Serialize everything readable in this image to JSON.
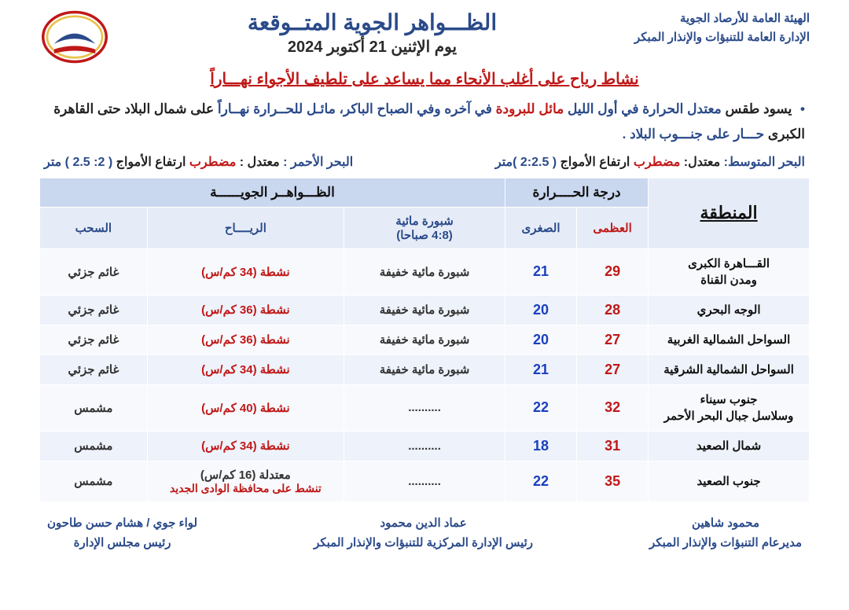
{
  "org": {
    "line1": "الهيئة العامة للأرصاد الجوية",
    "line2": "الإدارة العامة للتنبؤات والإنذار المبكر"
  },
  "title": {
    "main": "الظـــواهر الجوية المتــوقعة",
    "date": "يوم الإثنين 21 أكتوبر 2024"
  },
  "subtitle": "نشاط رياح على أغلب الأنحاء مما يساعد على تلطيف الأجواء نهـــاراً",
  "summary": {
    "prefix": "يسود طقس",
    "p1": " معتدل الحرارة في أول الليل",
    "p2": " مائل للبرودة",
    "p3": " في آخره وفي الصباح الباكر، مائـل للحــرارة نهــاراً",
    "p4": " على شمال البلاد حتى القاهرة الكبرى",
    "p5": " حـــار على جنـــوب البلاد ."
  },
  "seas": {
    "med": {
      "label": "البحر المتوسط:",
      "status_a": "معتدل:",
      "status_b": "مضطرب",
      "waves_label": "ارتفاع الأمواج",
      "waves_val": "( 2:2.5 )متر"
    },
    "red": {
      "label": "البحر الأحمر :",
      "status_a": "معتدل :",
      "status_b": "مضطرب",
      "waves_label": "ارتفاع الأمواج",
      "waves_val": "( 2: 2.5 ) متر"
    }
  },
  "table": {
    "headers": {
      "region": "المنطقة",
      "temp_group": "درجة الحــــرارة",
      "phen_group": "الظـــواهــر الجويــــــة",
      "max": "العظمى",
      "min": "الصغرى",
      "mist": "شبورة مائية\n(4:8 صباحا)",
      "wind": "الريــــاح",
      "cloud": "السحب"
    },
    "rows": [
      {
        "region": "القـــاهرة الكبرى\nومدن القناة",
        "max": "29",
        "min": "21",
        "mist": "شبورة مائية خفيفة",
        "wind": "نشطة (34 كم/س)",
        "wind_extra": "",
        "cloud": "غائم جزئي"
      },
      {
        "region": "الوجه البحري",
        "max": "28",
        "min": "20",
        "mist": "شبورة مائية خفيفة",
        "wind": "نشطة (36 كم/س)",
        "wind_extra": "",
        "cloud": "غائم جزئي"
      },
      {
        "region": "السواحل الشمالية الغربية",
        "max": "27",
        "min": "20",
        "mist": "شبورة مائية خفيفة",
        "wind": "نشطة (36 كم/س)",
        "wind_extra": "",
        "cloud": "غائم جزئي"
      },
      {
        "region": "السواحل الشمالية الشرقية",
        "max": "27",
        "min": "21",
        "mist": "شبورة مائية خفيفة",
        "wind": "نشطة (34 كم/س)",
        "wind_extra": "",
        "cloud": "غائم جزئي"
      },
      {
        "region": "جنوب سيناء\nوسلاسل جبال البحر الأحمر",
        "max": "32",
        "min": "22",
        "mist": "..........",
        "wind": "نشطة (40 كم/س)",
        "wind_extra": "",
        "cloud": "مشمس"
      },
      {
        "region": "شمال الصعيد",
        "max": "31",
        "min": "18",
        "mist": "..........",
        "wind": "نشطة (34 كم/س)",
        "wind_extra": "",
        "cloud": "مشمس"
      },
      {
        "region": "جنوب الصعيد",
        "max": "35",
        "min": "22",
        "mist": "..........",
        "wind_mod": "معتدلة (16 كم/س)",
        "wind_extra": "تنشط على محافظة الوادى الجديد",
        "cloud": "مشمس"
      }
    ]
  },
  "signatures": {
    "s1": {
      "name": "محمود شاهين",
      "title": "مديرعام التنبؤات والإنذار المبكر"
    },
    "s2": {
      "name": "عماد الدين محمود",
      "title": "رئيس الإدارة المركزية للتنبؤات والإنذار المبكر"
    },
    "s3": {
      "name": "لواء جوي / هشام حسن طاحون",
      "title": "رئيس مجلس الإدارة"
    }
  },
  "colors": {
    "blue": "#2a4a8a",
    "red": "#c01818",
    "hdr1_bg": "#c9d7ef",
    "hdr2_bg": "#e6ecf7",
    "row_odd": "#f7f9fc",
    "row_even": "#eef2fa"
  }
}
